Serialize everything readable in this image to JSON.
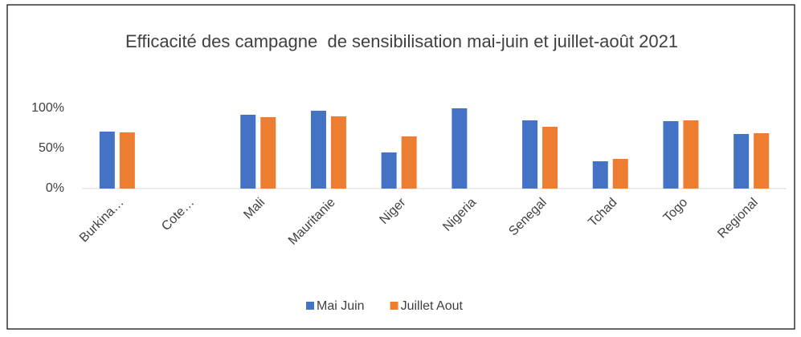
{
  "chart_data": {
    "type": "bar",
    "title": "Efficacité des campagne  de sensibilisation mai-juin et juillet-août 2021",
    "categories": [
      "Burkina…",
      "Cote…",
      "Mali",
      "Mauritanie",
      "Niger",
      "Nigeria",
      "Senegal",
      "Tchad",
      "Togo",
      "Regional"
    ],
    "series": [
      {
        "name": "Mai Juin",
        "color": "#4472c4",
        "values": [
          71,
          null,
          92,
          97,
          45,
          100,
          85,
          34,
          84,
          68
        ]
      },
      {
        "name": "Juillet Aout",
        "color": "#ed7d31",
        "values": [
          70,
          null,
          89,
          90,
          65,
          null,
          77,
          37,
          85,
          69
        ]
      }
    ],
    "ylim": [
      0,
      100
    ],
    "yticks": [
      {
        "value": 0,
        "label": "0%"
      },
      {
        "value": 50,
        "label": "50%"
      },
      {
        "value": 100,
        "label": "100%"
      }
    ],
    "legend": "bottom"
  }
}
